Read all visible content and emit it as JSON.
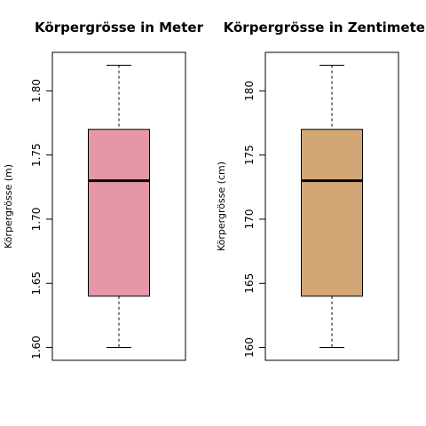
{
  "chart_data": [
    {
      "type": "boxplot",
      "title": "Körpergrösse in Meter",
      "ylabel": "Körpergrösse (m)",
      "xlabel": "",
      "ylim": [
        1.59,
        1.83
      ],
      "yticks": [
        1.6,
        1.65,
        1.7,
        1.75,
        1.8
      ],
      "ytick_labels": [
        "1.60",
        "1.65",
        "1.70",
        "1.75",
        "1.80"
      ],
      "box": {
        "min": 1.6,
        "q1": 1.64,
        "median": 1.73,
        "q3": 1.77,
        "max": 1.82
      },
      "fill": "#e597a8",
      "grid": false
    },
    {
      "type": "boxplot",
      "title": "Körpergrösse in Zentimeter",
      "ylabel": "Körpergrösse (cm)",
      "xlabel": "",
      "ylim": [
        159,
        183
      ],
      "yticks": [
        160,
        165,
        170,
        175,
        180
      ],
      "ytick_labels": [
        "160",
        "165",
        "170",
        "175",
        "180"
      ],
      "box": {
        "min": 160,
        "q1": 164,
        "median": 173,
        "q3": 177,
        "max": 182
      },
      "fill": "#d2a775",
      "grid": false
    }
  ]
}
